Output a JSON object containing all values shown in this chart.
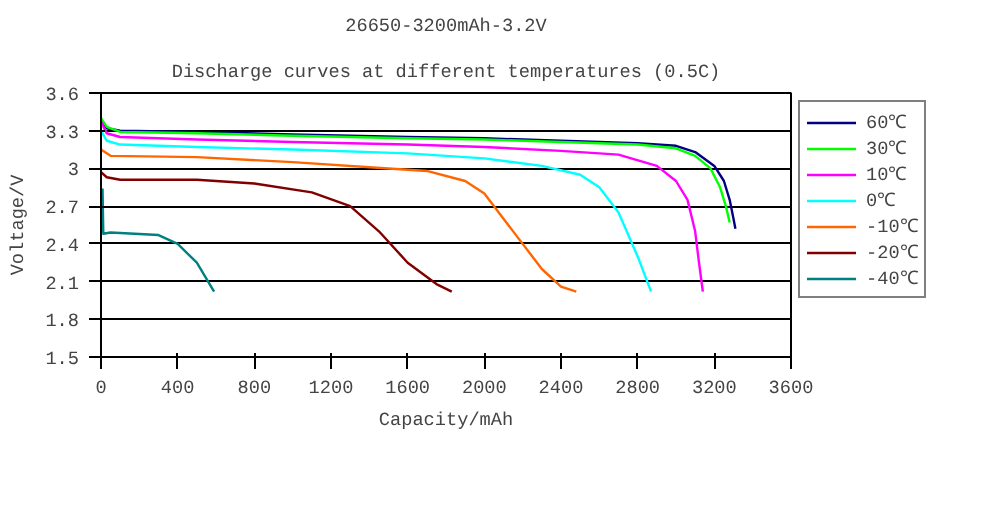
{
  "chart_data": {
    "type": "line",
    "title": "26650-3200mAh-3.2V",
    "subtitle": "Discharge curves at different temperatures (0.5C)",
    "xlabel": "Capacity/mAh",
    "ylabel": "Voltage/V",
    "xlim": [
      0,
      3600
    ],
    "xticks": [
      0,
      400,
      800,
      1200,
      1600,
      2000,
      2400,
      2800,
      3200,
      3600
    ],
    "ylim": [
      1.5,
      3.6
    ],
    "yticks": [
      1.5,
      1.8,
      2.1,
      2.4,
      2.7,
      3,
      3.3,
      3.6
    ],
    "grid": "y",
    "legend": "top right",
    "line_style": "solid",
    "marker": "none",
    "series": [
      {
        "name": "60℃",
        "color": "#000080",
        "x": [
          0,
          30,
          100,
          500,
          1000,
          1600,
          2000,
          2400,
          2800,
          3000,
          3100,
          3200,
          3250,
          3280,
          3300,
          3310
        ],
        "values": [
          3.38,
          3.32,
          3.3,
          3.29,
          3.27,
          3.25,
          3.24,
          3.22,
          3.2,
          3.18,
          3.13,
          3.02,
          2.9,
          2.75,
          2.6,
          2.52
        ]
      },
      {
        "name": "30℃",
        "color": "#00ff00",
        "x": [
          0,
          30,
          100,
          500,
          1000,
          1600,
          2000,
          2400,
          2800,
          3000,
          3100,
          3180,
          3230,
          3260,
          3280
        ],
        "values": [
          3.4,
          3.33,
          3.29,
          3.28,
          3.26,
          3.24,
          3.23,
          3.21,
          3.19,
          3.16,
          3.1,
          3.0,
          2.85,
          2.7,
          2.57
        ]
      },
      {
        "name": "10℃",
        "color": "#ff00ff",
        "x": [
          0,
          30,
          100,
          500,
          1000,
          1600,
          2000,
          2400,
          2700,
          2900,
          3000,
          3060,
          3100,
          3120,
          3140
        ],
        "values": [
          3.37,
          3.28,
          3.25,
          3.23,
          3.21,
          3.19,
          3.17,
          3.14,
          3.11,
          3.02,
          2.9,
          2.75,
          2.5,
          2.25,
          2.02
        ]
      },
      {
        "name": "0℃",
        "color": "#00ffff",
        "x": [
          0,
          30,
          100,
          500,
          1000,
          1600,
          2000,
          2300,
          2500,
          2600,
          2700,
          2800,
          2870
        ],
        "values": [
          3.3,
          3.22,
          3.19,
          3.17,
          3.15,
          3.12,
          3.08,
          3.02,
          2.95,
          2.85,
          2.65,
          2.3,
          2.02
        ]
      },
      {
        "name": "-10℃",
        "color": "#ff6600",
        "x": [
          0,
          50,
          500,
          1000,
          1500,
          1700,
          1900,
          2000,
          2100,
          2200,
          2300,
          2400,
          2480
        ],
        "values": [
          3.15,
          3.1,
          3.09,
          3.05,
          3.0,
          2.98,
          2.9,
          2.8,
          2.6,
          2.4,
          2.2,
          2.06,
          2.02
        ]
      },
      {
        "name": "-20℃",
        "color": "#800000",
        "x": [
          0,
          30,
          100,
          500,
          800,
          1100,
          1300,
          1450,
          1600,
          1750,
          1830
        ],
        "values": [
          2.97,
          2.93,
          2.91,
          2.91,
          2.88,
          2.81,
          2.7,
          2.5,
          2.25,
          2.08,
          2.02
        ]
      },
      {
        "name": "-40℃",
        "color": "#008080",
        "x": [
          8,
          12,
          50,
          300,
          400,
          500,
          590
        ],
        "values": [
          2.84,
          2.48,
          2.49,
          2.47,
          2.4,
          2.25,
          2.02
        ]
      }
    ]
  }
}
